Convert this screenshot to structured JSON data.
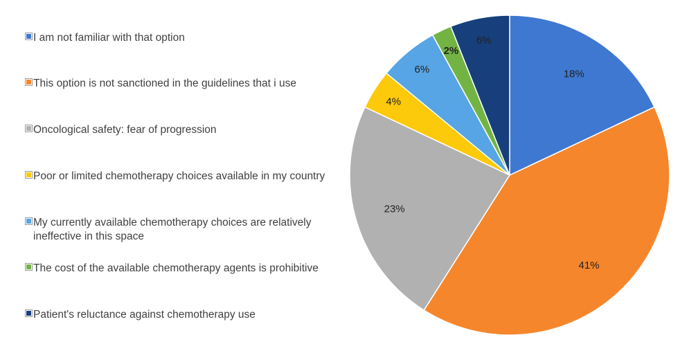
{
  "chart_data": {
    "type": "pie",
    "title": "",
    "legend_position": "left",
    "start_angle_deg": 0,
    "direction": "clockwise",
    "slices": [
      {
        "label": "I am not familiar with that option",
        "value": 18,
        "value_label": "18%",
        "color": "#3e78d1"
      },
      {
        "label": "This option is not sanctioned in the guidelines that i use",
        "value": 41,
        "value_label": "41%",
        "color": "#f5862c"
      },
      {
        "label": "Oncological safety: fear of progression",
        "value": 23,
        "value_label": "23%",
        "color": "#b1b1b1"
      },
      {
        "label": "Poor or limited chemotherapy choices available in my country",
        "value": 4,
        "value_label": "4%",
        "color": "#fdc90b"
      },
      {
        "label": "My currently available chemotherapy choices are relatively ineffective in this space",
        "value": 6,
        "value_label": "6%",
        "color": "#57a5e4"
      },
      {
        "label": "The cost of the available chemotherapy agents is prohibitive",
        "value": 2,
        "value_label": "2%",
        "color": "#73b344"
      },
      {
        "label": "Patient's reluctance against chemotherapy use",
        "value": 6,
        "value_label": "6%",
        "color": "#173f7b"
      }
    ]
  }
}
